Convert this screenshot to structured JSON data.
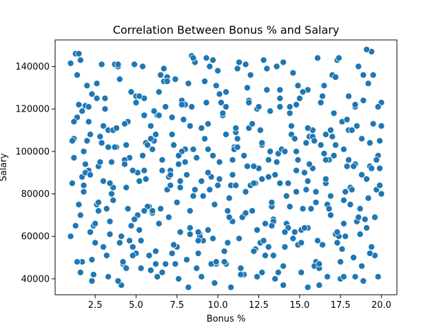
{
  "chart_data": {
    "type": "scatter",
    "title": "Correlation Between Bonus % and Salary",
    "xlabel": "Bonus %",
    "ylabel": "Salary",
    "xlim": [
      0.05,
      20.95
    ],
    "ylim": [
      32500,
      152500
    ],
    "xticks": [
      2.5,
      5.0,
      7.5,
      10.0,
      12.5,
      15.0,
      17.5,
      20.0
    ],
    "xtick_labels": [
      "2.5",
      "5.0",
      "7.5",
      "10.0",
      "12.5",
      "15.0",
      "17.5",
      "20.0"
    ],
    "yticks": [
      40000,
      60000,
      80000,
      100000,
      120000,
      140000
    ],
    "ytick_labels": [
      "40000",
      "60000",
      "80000",
      "100000",
      "120000",
      "140000"
    ],
    "grid": false,
    "legend": "none",
    "marker_color": "#1f77b4",
    "marker_edge": "#ffffff",
    "series": [
      {
        "x": [
          1.0,
          1.2,
          1.4,
          1.5,
          1.7,
          1.9,
          2.1,
          2.4,
          2.6,
          3.0,
          3.3,
          3.6,
          3.9,
          4.2,
          4.6,
          5.0,
          5.3,
          5.6,
          6.0,
          6.3,
          6.6,
          7.0,
          7.4,
          7.7,
          8.0,
          8.4,
          8.8,
          9.1,
          9.4,
          9.8,
          10.1,
          10.5,
          10.9,
          11.2,
          11.6,
          11.9,
          12.3,
          12.6,
          13.0,
          13.3,
          13.7,
          14.0,
          14.4,
          14.8,
          15.1,
          15.5,
          15.8,
          16.2,
          16.6,
          16.9,
          17.3,
          17.6,
          18.0,
          18.4,
          18.7,
          19.1,
          19.4,
          19.8,
          20.0,
          1.1,
          1.3,
          1.6,
          1.8,
          2.0,
          2.3,
          2.7,
          3.1,
          3.4,
          3.8,
          4.1,
          4.5,
          4.8,
          5.2,
          5.5,
          5.9,
          6.2,
          6.5,
          6.9,
          7.2,
          7.6,
          7.9,
          8.3,
          8.6,
          9.0,
          9.3,
          9.7,
          10.0,
          10.4,
          10.7,
          11.1,
          11.4,
          11.8,
          12.1,
          12.5,
          12.8,
          13.2,
          13.5,
          13.9,
          14.2,
          14.6,
          14.9,
          15.3,
          15.6,
          16.0,
          16.4,
          16.7,
          17.1,
          17.4,
          17.8,
          18.1,
          18.5,
          18.9,
          19.2,
          19.6,
          19.9,
          1.2,
          1.5,
          1.8,
          2.2,
          2.5,
          2.9,
          3.2,
          3.5,
          3.9,
          4.3,
          4.7,
          5.1,
          5.4,
          5.8,
          6.1,
          6.4,
          6.8,
          7.1,
          7.5,
          7.8,
          8.2,
          8.5,
          8.9,
          9.2,
          9.6,
          9.9,
          10.3,
          10.6,
          11.0,
          11.3,
          11.7,
          12.0,
          12.4,
          12.7,
          13.1,
          13.4,
          13.8,
          14.1,
          14.5,
          14.8,
          15.2,
          15.5,
          15.9,
          16.3,
          16.6,
          17.0,
          17.3,
          17.7,
          18.0,
          18.4,
          18.8,
          19.1,
          19.5,
          19.8,
          1.0,
          1.4,
          1.7,
          2.1,
          2.4,
          2.8,
          3.1,
          3.5,
          3.8,
          4.2,
          4.5,
          4.9,
          5.2,
          5.6,
          5.9,
          6.3,
          6.7,
          7.0,
          7.3,
          7.7,
          8.1,
          8.4,
          8.7,
          9.1,
          9.5,
          9.8,
          10.2,
          10.5,
          10.9,
          11.2,
          11.6,
          11.9,
          12.3,
          12.7,
          13.0,
          13.4,
          13.7,
          14.1,
          14.4,
          14.8,
          15.1,
          15.5,
          15.8,
          16.2,
          16.5,
          16.9,
          17.2,
          17.6,
          17.9,
          18.3,
          18.6,
          19.0,
          19.3,
          19.7,
          20.0,
          1.3,
          1.6,
          2.0,
          2.3,
          2.6,
          3.0,
          3.4,
          3.7,
          4.0,
          4.4,
          4.8,
          5.1,
          5.5,
          5.8,
          6.2,
          6.5,
          6.9,
          7.2,
          7.6,
          8.0,
          8.3,
          8.6,
          9.0,
          9.4,
          9.7,
          10.1,
          10.4,
          10.8,
          11.1,
          11.5,
          11.8,
          12.2,
          12.5,
          12.9,
          13.2,
          13.6,
          14.0,
          14.3,
          14.7,
          15.0,
          15.4,
          15.7,
          16.1,
          16.4,
          16.8,
          17.1,
          17.5,
          17.8,
          18.2,
          18.5,
          18.9,
          19.3,
          19.6,
          19.9,
          1.1,
          1.5,
          1.9,
          2.2,
          2.6,
          2.9,
          3.3,
          3.6,
          4.0,
          4.3,
          4.7,
          5.0,
          5.4,
          5.7,
          6.1,
          6.4,
          6.8,
          7.1,
          7.5,
          7.8,
          8.2,
          8.5,
          8.9,
          9.3,
          9.6,
          10.0,
          10.3,
          10.7,
          11.0,
          11.4,
          11.7,
          12.1,
          12.4,
          12.8,
          13.1,
          13.5,
          13.8,
          14.2,
          14.6,
          14.9,
          15.3,
          15.6,
          16.0,
          16.3,
          16.7,
          17.0,
          17.4,
          17.7,
          18.1,
          18.4,
          18.8,
          19.2,
          19.5,
          19.9,
          1.2,
          1.6,
          1.9,
          2.3,
          2.7,
          3.0,
          3.4,
          3.7,
          4.1,
          4.4,
          4.8,
          5.2,
          5.5,
          5.9,
          6.2,
          6.6,
          6.9,
          7.3,
          7.6,
          8.0,
          8.3,
          8.7,
          9.0,
          9.4,
          9.7,
          10.1,
          10.5,
          10.8,
          11.2,
          11.5,
          11.9,
          12.2,
          12.6,
          12.9,
          13.3,
          13.6,
          14.0,
          14.3,
          14.7,
          15.1,
          15.4,
          15.8,
          16.1,
          16.5,
          16.8,
          17.2,
          17.5,
          17.9,
          18.2,
          18.6,
          18.9,
          19.3,
          19.7,
          20.0,
          1.4,
          1.8,
          2.1,
          2.5,
          2.8,
          3.2,
          3.6,
          3.9,
          4.3,
          4.6,
          5.0,
          5.3,
          5.7,
          6.0,
          6.4,
          6.7,
          7.1,
          7.4,
          7.8,
          8.1,
          8.5,
          8.8,
          9.2,
          9.5,
          9.9,
          10.2,
          10.6,
          10.9,
          11.3,
          11.7,
          12.0,
          12.4,
          12.7,
          13.1,
          13.4,
          13.8,
          14.1,
          14.5,
          14.8,
          15.2,
          15.5,
          15.9,
          16.2,
          16.6,
          16.9,
          17.3,
          17.7,
          18.0,
          18.4,
          18.7,
          19.1,
          19.4,
          19.8,
          1.7,
          2.2,
          2.7,
          3.3,
          3.8,
          4.4,
          4.9,
          5.5,
          6.0,
          6.6,
          7.2,
          7.7,
          8.3,
          8.8,
          9.4,
          9.9,
          10.5,
          11.1,
          11.6,
          12.2,
          12.7,
          13.3,
          13.8,
          14.4,
          14.9,
          15.5,
          16.0,
          16.6,
          17.2,
          17.7,
          18.3,
          18.8,
          19.4
        ],
        "y": [
          141500,
          106000,
          136000,
          75000,
          48000,
          121500,
          91000,
          65000,
          132000,
          55000,
          110000,
          83000,
          140000,
          47000,
          97000,
          126000,
          58000,
          104000,
          71000,
          117000,
          43000,
          88000,
          134000,
          62000,
          101000,
          145000,
          52000,
          79000,
          113000,
          38000,
          95000,
          128000,
          67000,
          106000,
          42000,
          124000,
          85000,
          57000,
          139000,
          74000,
          99000,
          46000,
          118000,
          81000,
          63000,
          129000,
          92000,
          37000,
          108000,
          70000,
          143000,
          54000,
          96000,
          121000,
          61000,
          87000,
          147000,
          41000,
          112000,
          85000,
          65000,
          143000,
          100000,
          131000,
          49000,
          93000,
          120000,
          67000,
          102000,
          37000,
          114000,
          55000,
          86000,
          125000,
          44000,
          108000,
          73000,
          135000,
          52000,
          94000,
          115000,
          61000,
          82000,
          41000,
          123000,
          98000,
          138000,
          53000,
          78000,
          109000,
          45000,
          130000,
          72000,
          92000,
          58000,
          119000,
          40000,
          101000,
          66000,
          137000,
          56000,
          90000,
          107000,
          48000,
          126000,
          75000,
          98000,
          144000,
          60000,
          83000,
          112000,
          39000,
          132000,
          69000,
          105000,
          97000,
          122000,
          81000,
          108000,
          57000,
          141000,
          73000,
          95000,
          39000,
          113000,
          65000,
          90000,
          140000,
          51000,
          105000,
          128000,
          47000,
          91000,
          76000,
          124000,
          36000,
          101000,
          61000,
          133000,
          88000,
          47000,
          117000,
          72000,
          102000,
          59000,
          141000,
          84000,
          120000,
          43000,
          96000,
          68000,
          129000,
          55000,
          108000,
          91000,
          128000,
          64000,
          46000,
          103000,
          85000,
          136000,
          57000,
          77000,
          110000,
          41000,
          89000,
          64000,
          136000,
          98000,
          60000,
          116000,
          88000,
          114000,
          42000,
          95000,
          125000,
          80000,
          102000,
          48000,
          73000,
          141000,
          63000,
          87000,
          112000,
          41000,
          133000,
          69000,
          103000,
          83000,
          49000,
          121000,
          97000,
          58000,
          140000,
          75000,
          123000,
          47000,
          89000,
          139000,
          70000,
          111000,
          54000,
          87000,
          129000,
          67000,
          43000,
          100000,
          74000,
          122000,
          57000,
          86000,
          107000,
          45000,
          131000,
          79000,
          61000,
          114000,
          93000,
          50000,
          140000,
          68000,
          104000,
          82000,
          123000,
          146000,
          70000,
          105000,
          39000,
          125000,
          86000,
          61000,
          102000,
          134000,
          45000,
          91000,
          70000,
          117000,
          74000,
          53000,
          136000,
          82000,
          116000,
          40000,
          95000,
          64000,
          142000,
          86000,
          101000,
          59000,
          127000,
          48000,
          84000,
          111000,
          69000,
          93000,
          53000,
          121000,
          66000,
          100000,
          140000,
          37000,
          85000,
          62000,
          125000,
          104000,
          73000,
          144000,
          56000,
          96000,
          118000,
          40000,
          81000,
          110000,
          67000,
          136000,
          93000,
          51000,
          84000,
          105000,
          146000,
          90000,
          62000,
          75000,
          104000,
          41000,
          110000,
          57000,
          96000,
          128000,
          52000,
          98000,
          74000,
          119000,
          66000,
          121000,
          89000,
          55000,
          100000,
          132000,
          79000,
          60000,
          144000,
          47000,
          84000,
          118000,
          69000,
          101000,
          42000,
          81000,
          113000,
          63000,
          143000,
          55000,
          89000,
          125000,
          79000,
          59000,
          131000,
          64000,
          94000,
          81000,
          123000,
          41000,
          107000,
          60000,
          101000,
          75000,
          122000,
          46000,
          78000,
          113000,
          92000,
          114000,
          43000,
          94000,
          127000,
          76000,
          112000,
          85000,
          141000,
          60000,
          103000,
          51000,
          126000,
          72000,
          106000,
          47000,
          91000,
          133000,
          56000,
          98000,
          122000,
          72000,
          45000,
          111000,
          63000,
          143000,
          87000,
          121000,
          36000,
          102000,
          69000,
          123000,
          85000,
          110000,
          51000,
          76000,
          95000,
          142000,
          64000,
          106000,
          43000,
          82000,
          110000,
          58000,
          99000,
          73000,
          135000,
          48000,
          115000,
          82000,
          69000,
          124000,
          52000,
          96000,
          80000,
          48000,
          84000,
          121000,
          66000,
          107000,
          51000,
          77000,
          141000,
          94000,
          58000,
          123000,
          45000,
          103000,
          72000,
          117000,
          139000,
          84000,
          47000,
          122000,
          89000,
          144000,
          58000,
          106000,
          82000,
          48000,
          123000,
          57000,
          96000,
          142000,
          71000,
          136000,
          41000,
          103000,
          88000,
          51000,
          121000,
          62000,
          112000,
          100000,
          73000,
          36000,
          105000,
          47000,
          87000,
          110000,
          62000,
          41000,
          126000,
          94000,
          73000,
          148000,
          55000,
          121000,
          119000,
          89000,
          72000,
          102000,
          111000,
          83000,
          68000,
          91000,
          101000,
          96000,
          108000,
          86000,
          112000,
          62000,
          90000,
          131000,
          108000,
          84000,
          98000,
          93000,
          104000,
          65000,
          85000,
          121000,
          96000,
          111000,
          76000,
          96000,
          103000,
          66000,
          93000,
          106000,
          92000
        ]
      }
    ]
  }
}
